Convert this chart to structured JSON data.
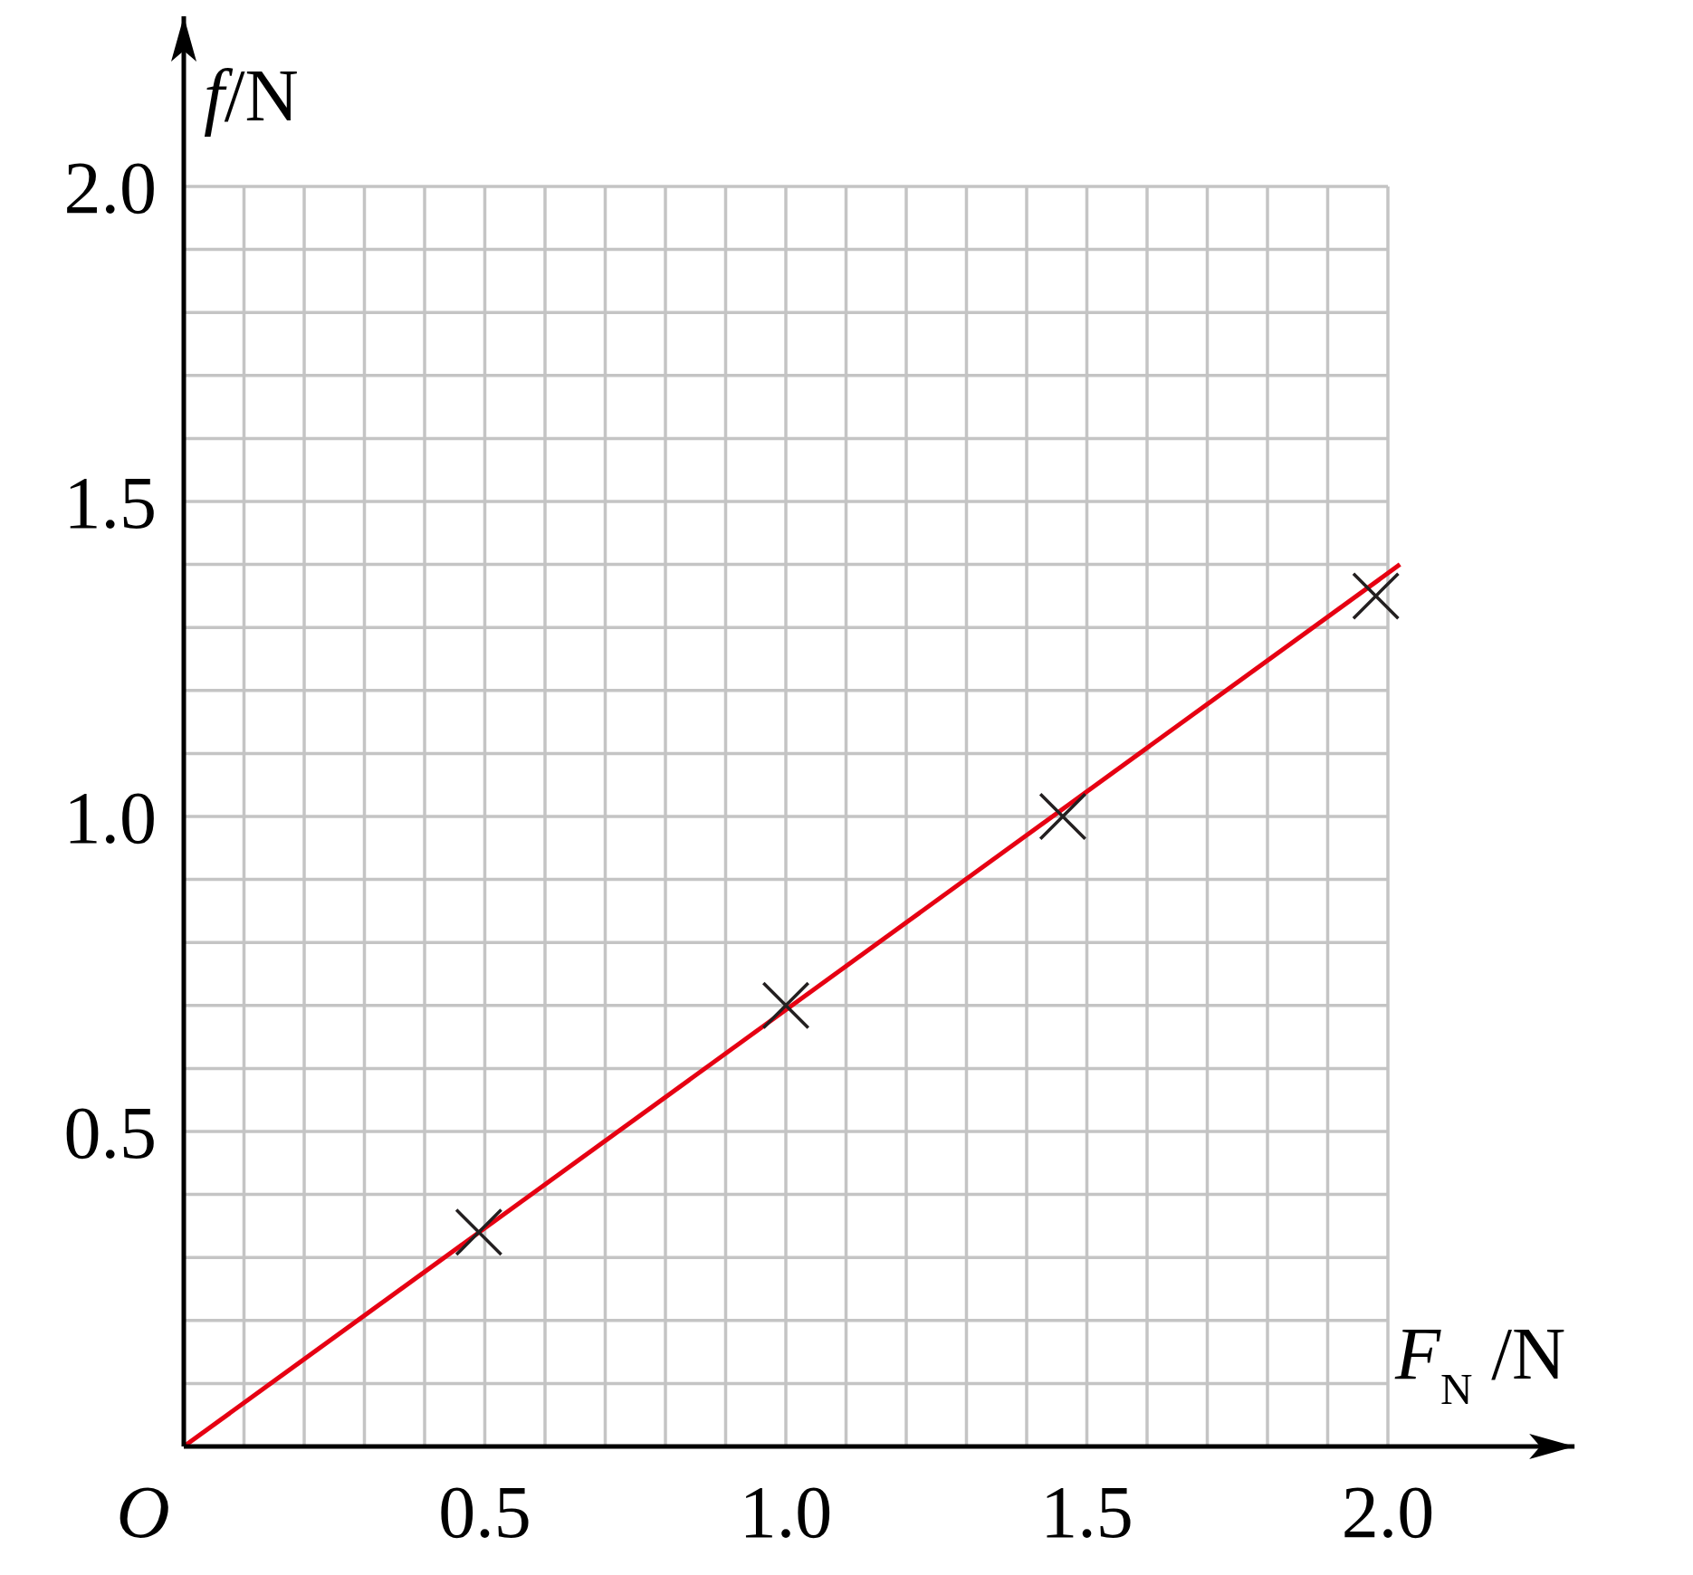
{
  "chart_data": {
    "type": "scatter",
    "xlabel": "F$_{N}$/N",
    "ylabel": "f/N",
    "xlim": [
      0,
      2.31
    ],
    "ylim": [
      0,
      2.27
    ],
    "xticks": [
      {
        "value": 0,
        "label": "O"
      },
      {
        "value": 0.1,
        "label": null
      },
      {
        "value": 0.2,
        "label": null
      },
      {
        "value": 0.3,
        "label": null
      },
      {
        "value": 0.4,
        "label": null
      },
      0.5,
      {
        "value": 0.6,
        "label": null
      },
      {
        "value": 0.7,
        "label": null
      },
      {
        "value": 0.8,
        "label": null
      },
      {
        "value": 0.9,
        "label": null
      },
      {
        "value": 1,
        "label": "1.0"
      },
      {
        "value": 1.1,
        "label": null
      },
      {
        "value": 1.2,
        "label": null
      },
      {
        "value": 1.3,
        "label": null
      },
      {
        "value": 1.4,
        "label": null
      },
      1.5,
      {
        "value": 1.6,
        "label": null
      },
      {
        "value": 1.7,
        "label": null
      },
      {
        "value": 1.8,
        "label": null
      },
      {
        "value": 1.9,
        "label": null
      },
      {
        "value": 2,
        "label": "2.0"
      }
    ],
    "yticks": [
      {
        "value": 0.1,
        "label": null
      },
      {
        "value": 0.2,
        "label": null
      },
      {
        "value": 0.3,
        "label": null
      },
      {
        "value": 0.4,
        "label": null
      },
      0.5,
      {
        "value": 0.6,
        "label": null
      },
      {
        "value": 0.7,
        "label": null
      },
      {
        "value": 0.8,
        "label": null
      },
      {
        "value": 0.9,
        "label": null
      },
      {
        "value": 1,
        "label": "1.0"
      },
      {
        "value": 1.1,
        "label": null
      },
      {
        "value": 1.2,
        "label": null
      },
      {
        "value": 1.3,
        "label": null
      },
      {
        "value": 1.4,
        "label": null
      },
      1.5,
      {
        "value": 1.6,
        "label": null
      },
      {
        "value": 1.7,
        "label": null
      },
      {
        "value": 1.8,
        "label": null
      },
      {
        "value": 1.9,
        "label": null
      },
      {
        "value": 2,
        "label": "2.0"
      }
    ],
    "grid": true,
    "marker": "cross",
    "series": [
      {
        "color": "#231f20",
        "x": [
          0.49,
          1.0,
          1.46,
          1.98
        ],
        "values": [
          0.34,
          0.7,
          1.0,
          1.35
        ]
      },
      {
        "type": "line",
        "marker": "none",
        "color": "#e60012",
        "x": [
          0,
          2.02
        ],
        "values": [
          0,
          1.4
        ]
      }
    ]
  }
}
